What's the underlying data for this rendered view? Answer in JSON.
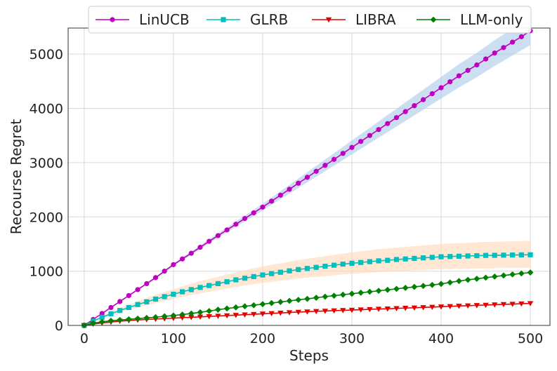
{
  "chart_data": {
    "type": "line",
    "xlabel": "Steps",
    "ylabel": "Recourse Regret",
    "xlim": [
      -18,
      522
    ],
    "ylim": [
      0,
      5480
    ],
    "xticks": [
      0,
      100,
      200,
      300,
      400,
      500
    ],
    "yticks": [
      0,
      1000,
      2000,
      3000,
      4000,
      5000
    ],
    "grid": true,
    "legend_position": "top-center",
    "x": [
      0,
      10,
      20,
      30,
      40,
      50,
      60,
      70,
      80,
      90,
      100,
      110,
      120,
      130,
      140,
      150,
      160,
      170,
      180,
      190,
      200,
      210,
      220,
      230,
      240,
      250,
      260,
      270,
      280,
      290,
      300,
      310,
      320,
      330,
      340,
      350,
      360,
      370,
      380,
      390,
      400,
      410,
      420,
      430,
      440,
      450,
      460,
      470,
      480,
      490,
      500
    ],
    "series": [
      {
        "name": "LinUCB",
        "color": "#bf00bf",
        "marker": "circle",
        "values": [
          0,
          110,
          220,
          330,
          440,
          550,
          660,
          770,
          880,
          1000,
          1120,
          1225,
          1330,
          1440,
          1550,
          1655,
          1760,
          1865,
          1970,
          2075,
          2180,
          2290,
          2400,
          2510,
          2620,
          2730,
          2840,
          2950,
          3060,
          3170,
          3280,
          3390,
          3500,
          3610,
          3720,
          3830,
          3940,
          4050,
          4160,
          4270,
          4380,
          4490,
          4600,
          4700,
          4800,
          4910,
          5020,
          5120,
          5220,
          5320,
          5430
        ],
        "band": {
          "color": "#aac8e8",
          "lower": [
            0,
            108,
            216,
            324,
            432,
            540,
            648,
            756,
            864,
            980,
            1095,
            1198,
            1300,
            1405,
            1512,
            1613,
            1715,
            1816,
            1917,
            2018,
            2120,
            2223,
            2326,
            2430,
            2533,
            2637,
            2740,
            2842,
            2946,
            3050,
            3152,
            3255,
            3358,
            3460,
            3563,
            3666,
            3768,
            3872,
            3975,
            4078,
            4180,
            4283,
            4386,
            4480,
            4575,
            4680,
            4782,
            4878,
            4975,
            5070,
            5170
          ],
          "upper": [
            0,
            112,
            224,
            336,
            448,
            560,
            672,
            784,
            896,
            1020,
            1145,
            1252,
            1360,
            1475,
            1588,
            1697,
            1805,
            1914,
            2023,
            2132,
            2240,
            2357,
            2474,
            2590,
            2707,
            2823,
            2940,
            3058,
            3174,
            3290,
            3408,
            3525,
            3642,
            3760,
            3877,
            3994,
            4112,
            4228,
            4345,
            4462,
            4580,
            4697,
            4814,
            4920,
            5025,
            5140,
            5258,
            5362,
            5465,
            5570,
            5690
          ]
        }
      },
      {
        "name": "GLRB",
        "color": "#00bfbf",
        "marker": "square",
        "values": [
          0,
          80,
          150,
          215,
          275,
          330,
          385,
          435,
          485,
          530,
          575,
          620,
          660,
          700,
          735,
          770,
          805,
          840,
          870,
          900,
          930,
          955,
          980,
          1005,
          1030,
          1050,
          1070,
          1090,
          1110,
          1130,
          1145,
          1160,
          1175,
          1190,
          1200,
          1215,
          1225,
          1235,
          1245,
          1255,
          1265,
          1270,
          1275,
          1280,
          1285,
          1290,
          1292,
          1295,
          1298,
          1300,
          1302
        ],
        "band": {
          "color": "#ffd7b5",
          "lower": [
            0,
            70,
            130,
            185,
            235,
            285,
            330,
            370,
            410,
            450,
            490,
            525,
            560,
            590,
            620,
            650,
            680,
            710,
            735,
            760,
            785,
            805,
            825,
            845,
            865,
            880,
            895,
            910,
            925,
            940,
            950,
            960,
            972,
            983,
            990,
            1000,
            1008,
            1015,
            1022,
            1030,
            1037,
            1040,
            1043,
            1046,
            1049,
            1052,
            1054,
            1056,
            1058,
            1060,
            1062
          ],
          "upper": [
            0,
            92,
            172,
            248,
            318,
            380,
            443,
            503,
            563,
            615,
            665,
            720,
            768,
            815,
            857,
            897,
            938,
            978,
            1015,
            1050,
            1085,
            1115,
            1145,
            1175,
            1205,
            1228,
            1252,
            1276,
            1300,
            1322,
            1345,
            1365,
            1385,
            1405,
            1418,
            1435,
            1448,
            1461,
            1474,
            1487,
            1500,
            1508,
            1515,
            1522,
            1530,
            1538,
            1542,
            1546,
            1550,
            1554,
            1558
          ]
        }
      },
      {
        "name": "LIBRA",
        "color": "#e60000",
        "marker": "triangle-down",
        "values": [
          0,
          25,
          45,
          62,
          78,
          90,
          100,
          110,
          118,
          126,
          134,
          142,
          150,
          158,
          166,
          174,
          182,
          190,
          198,
          206,
          214,
          222,
          230,
          238,
          246,
          253,
          260,
          266,
          272,
          278,
          284,
          290,
          296,
          302,
          308,
          314,
          320,
          326,
          332,
          338,
          345,
          352,
          358,
          364,
          370,
          376,
          382,
          388,
          394,
          400,
          406
        ]
      },
      {
        "name": "LLM-only",
        "color": "#008000",
        "marker": "diamond",
        "values": [
          0,
          40,
          65,
          85,
          100,
          112,
          125,
          138,
          152,
          168,
          182,
          200,
          220,
          242,
          265,
          290,
          312,
          332,
          352,
          372,
          392,
          412,
          432,
          452,
          472,
          490,
          510,
          530,
          548,
          566,
          584,
          602,
          620,
          638,
          656,
          674,
          692,
          710,
          728,
          746,
          765,
          792,
          818,
          840,
          860,
          880,
          900,
          920,
          940,
          958,
          975
        ]
      }
    ]
  }
}
